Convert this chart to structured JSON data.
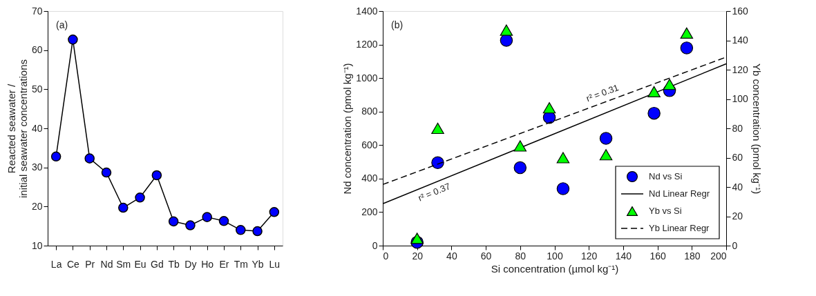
{
  "chart_data": [
    {
      "type": "line",
      "ylabel": "Reacted seawater /\ninitial seawater concentrations",
      "annotations": [
        "(a)"
      ],
      "categories": [
        "La",
        "Ce",
        "Pr",
        "Nd",
        "Sm",
        "Eu",
        "Gd",
        "Tb",
        "Dy",
        "Ho",
        "Er",
        "Tm",
        "Yb",
        "Lu"
      ],
      "values": [
        32.8,
        62.7,
        32.3,
        28.7,
        19.7,
        22.3,
        28.0,
        16.2,
        15.2,
        17.3,
        16.3,
        14.0,
        13.7,
        18.6
      ],
      "color": "#0000ff",
      "marker": "circle",
      "line_style": "solid",
      "ylim": [
        10,
        70
      ],
      "yticks": [
        10,
        20,
        30,
        40,
        50,
        60,
        70
      ],
      "grid": false
    },
    {
      "type": "scatter",
      "xlabel": "Si concentration (µmol kg⁻¹)",
      "ylabel": "Nd concentration (pmol kg⁻¹)",
      "y2label": "Yb concentration (pmol kg⁻¹)",
      "annotations": [
        "(b)",
        "r² = 0.37",
        "r² = 0.31"
      ],
      "series": [
        {
          "name": "Nd vs Si",
          "type": "scatter",
          "marker": "circle",
          "color": "#0000ff",
          "x": [
            20,
            32,
            72,
            80,
            97,
            105,
            130,
            158,
            167,
            177
          ],
          "values": [
            20,
            495,
            1225,
            465,
            765,
            340,
            640,
            790,
            925,
            1180
          ]
        },
        {
          "name": "Nd Linear Regr",
          "type": "line",
          "line_style": "solid",
          "color": "#000000",
          "x": [
            0,
            200
          ],
          "values": [
            250,
            1085
          ]
        },
        {
          "name": "Yb vs Si",
          "type": "scatter",
          "marker": "triangle",
          "axis": "y2",
          "color": "#00ff00",
          "x": [
            20,
            32,
            72,
            80,
            97,
            105,
            130,
            158,
            167,
            177
          ],
          "values": [
            5,
            80,
            147,
            68,
            94,
            60,
            62,
            105,
            110,
            145
          ]
        },
        {
          "name": "Yb Linear Regr",
          "type": "line",
          "line_style": "dashed",
          "axis": "y2",
          "color": "#000000",
          "x": [
            0,
            200
          ],
          "values": [
            41.7,
            128.6
          ]
        }
      ],
      "xlim": [
        0,
        200
      ],
      "xticks": [
        0,
        20,
        40,
        60,
        80,
        100,
        120,
        140,
        160,
        180,
        200
      ],
      "ylim": [
        0,
        1400
      ],
      "yticks": [
        0,
        200,
        400,
        600,
        800,
        1000,
        1200,
        1400
      ],
      "y2lim": [
        0,
        160
      ],
      "y2ticks": [
        0,
        20,
        40,
        60,
        80,
        100,
        120,
        140,
        160
      ],
      "grid": false,
      "legend": "bottom right"
    }
  ]
}
